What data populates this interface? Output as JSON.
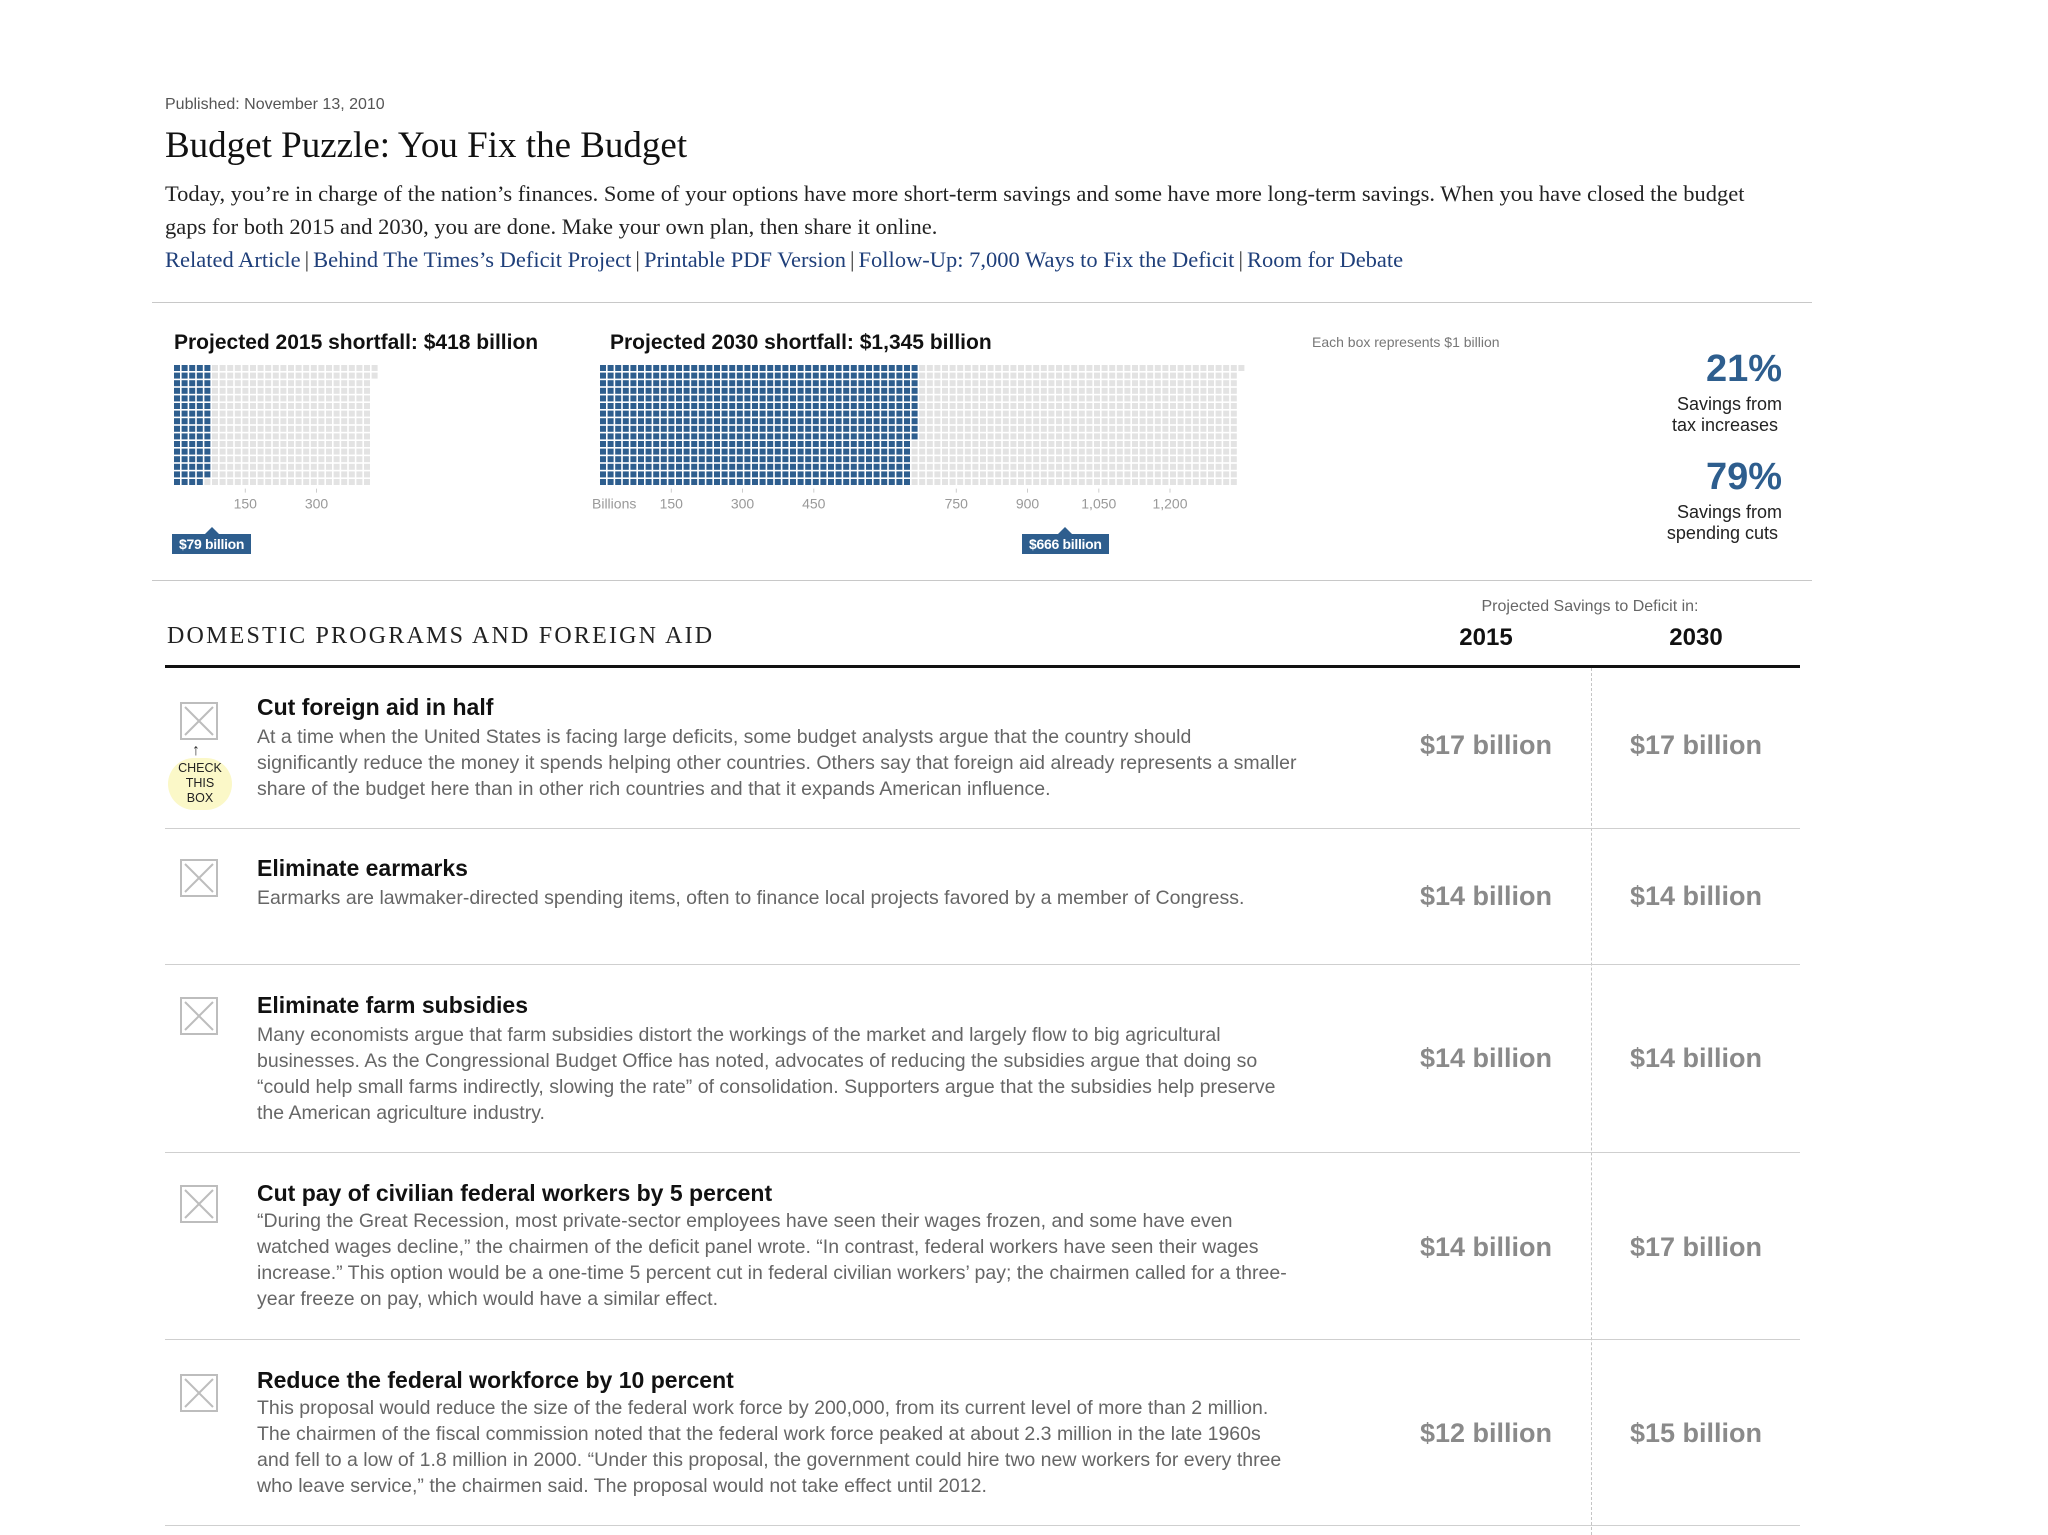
{
  "header": {
    "published": "Published: November 13, 2010",
    "title": "Budget Puzzle: You Fix the Budget",
    "intro": "Today, you’re in charge of the nation’s finances. Some of your options have more short-term savings and some have more long-term savings. When you have closed the budget gaps for both 2015 and 2030, you are done. Make your own plan, then share it online.",
    "links": [
      "Related Article",
      "Behind The Times’s Deficit Project",
      "Printable PDF Version",
      "Follow-Up: 7,000 Ways to Fix the Deficit",
      "Room for Debate"
    ]
  },
  "shortfall": {
    "y2015": {
      "title": "Projected 2015 shortfall: $418 billion",
      "total": 418,
      "savings": 79,
      "marker": "$79 billion",
      "ticks": [
        "150",
        "300"
      ]
    },
    "y2030": {
      "title": "Projected 2030 shortfall: $1,345 billion",
      "total": 1345,
      "savings": 666,
      "marker": "$666 billion",
      "unit_label": "Billions",
      "ticks": [
        "150",
        "300",
        "450",
        "750",
        "900",
        "1,050",
        "1,200"
      ]
    },
    "note": "Each box represents $1 billion",
    "tax_pct": "21%",
    "tax_label_1": "Savings from",
    "tax_label_2": "tax increases",
    "spend_pct": "79%",
    "spend_label_1": "Savings from",
    "spend_label_2": "spending cuts",
    "colors": {
      "filled": "#2e5e8e",
      "empty": "#e3e3e3"
    }
  },
  "section": {
    "title": "DOMESTIC PROGRAMS AND FOREIGN AID",
    "projected_label": "Projected Savings to Deficit in:",
    "year_2015": "2015",
    "year_2030": "2030"
  },
  "hint": {
    "arrow": "↑",
    "line1": "CHECK",
    "line2": "THIS",
    "line3": "BOX"
  },
  "options": [
    {
      "title": "Cut foreign aid in half",
      "desc": "At a time when the United States is facing large deficits, some budget analysts argue that the country should significantly reduce the money it spends helping other countries. Others say that foreign aid already represents a smaller share of the budget here than in other rich countries and that it expands American influence.",
      "v2015": "$17 billion",
      "v2030": "$17 billion"
    },
    {
      "title": "Eliminate earmarks",
      "desc": "Earmarks are lawmaker-directed spending items, often to finance local projects favored by a member of Congress.",
      "v2015": "$14 billion",
      "v2030": "$14 billion"
    },
    {
      "title": "Eliminate farm subsidies",
      "desc": "Many economists argue that farm subsidies distort the workings of the market and largely flow to big agricultural businesses. As the Congressional Budget Office has noted, advocates of reducing the subsidies argue that doing so “could help small farms indirectly, slowing the rate” of consolidation. Supporters argue that the subsidies help preserve the American agriculture industry.",
      "v2015": "$14 billion",
      "v2030": "$14 billion"
    },
    {
      "title": "Cut pay of civilian federal workers by 5 percent",
      "desc": "“During the Great Recession, most private-sector employees have seen their wages frozen, and some have even watched wages decline,” the chairmen of the deficit panel wrote. “In contrast, federal workers have seen their wages increase.” This option would be a one-time 5 percent cut in federal civilian workers’ pay; the chairmen called for a three-year freeze on pay, which would have a similar effect.",
      "v2015": "$14 billion",
      "v2030": "$17 billion"
    },
    {
      "title": "Reduce the federal workforce by 10 percent",
      "desc": "This proposal would reduce the size of the federal work force by 200,000, from its current level of more than 2 million. The chairmen of the fiscal commission noted that the federal work force peaked at about 2.3 million in the late 1960s and fell to a low of 1.8 million in 2000. “Under this proposal, the government could hire two new workers for every three who leave service,” the chairmen said. The proposal would not take effect until 2012.",
      "v2015": "$12 billion",
      "v2030": "$15 billion"
    }
  ]
}
